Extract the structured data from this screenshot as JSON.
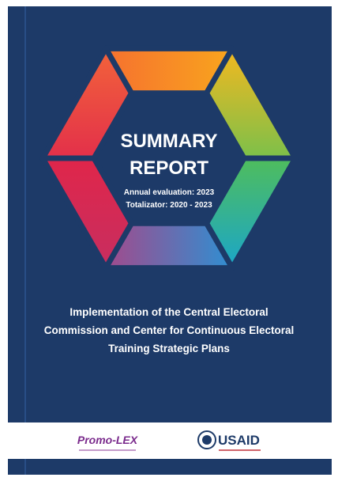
{
  "cover": {
    "title": [
      "SUMMARY",
      "REPORT"
    ],
    "subtitle": [
      "Annual evaluation: 2023",
      "Totalizator: 2020 - 2023"
    ],
    "description": [
      "Implementation of the Central Electoral",
      "Commission and Center for Continuous Electoral",
      "Training Strategic Plans"
    ]
  },
  "footer": {
    "logos": [
      "Promo-LEX",
      "USAID"
    ]
  }
}
